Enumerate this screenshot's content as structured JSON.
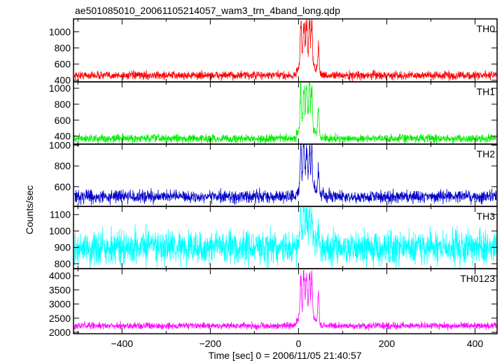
{
  "chart_data": {
    "type": "line",
    "title": "ae501085010_20061105214057_wam3_trn_4band_long.qdp",
    "xlabel": "Time [sec] 0 = 2006/11/05 21:40:57",
    "ylabel": "Counts/sec",
    "xlim": [
      -510,
      450
    ],
    "xticks": [
      -400,
      -200,
      0,
      200,
      400
    ],
    "grid": false,
    "burst": {
      "start": -5,
      "peaks": [
        5,
        12,
        18,
        25,
        30,
        45
      ],
      "end": 60
    },
    "panels": [
      {
        "name": "TH0",
        "color": "#ff0000",
        "ylim": [
          380,
          1160
        ],
        "yticks": [
          400,
          600,
          800,
          1000
        ],
        "baseline": 460,
        "noise": 25,
        "peak": 1160
      },
      {
        "name": "TH1",
        "color": "#00ee00",
        "ylim": [
          300,
          1080
        ],
        "yticks": [
          400,
          600,
          800,
          1000
        ],
        "baseline": 370,
        "noise": 25,
        "peak": 1030
      },
      {
        "name": "TH2",
        "color": "#0000cc",
        "ylim": [
          410,
          1010
        ],
        "yticks": [
          600,
          800,
          1000
        ],
        "baseline": 505,
        "noise": 30,
        "peak": 1000
      },
      {
        "name": "TH3",
        "color": "#00ffff",
        "ylim": [
          770,
          1150
        ],
        "yticks": [
          800,
          900,
          1000,
          1100
        ],
        "baseline": 900,
        "noise": 50,
        "peak": 1140
      },
      {
        "name": "TH0123",
        "color": "#ff00ff",
        "ylim": [
          1950,
          4250
        ],
        "yticks": [
          2000,
          2500,
          3000,
          3500,
          4000
        ],
        "baseline": 2230,
        "noise": 60,
        "peak": 4050
      }
    ]
  }
}
